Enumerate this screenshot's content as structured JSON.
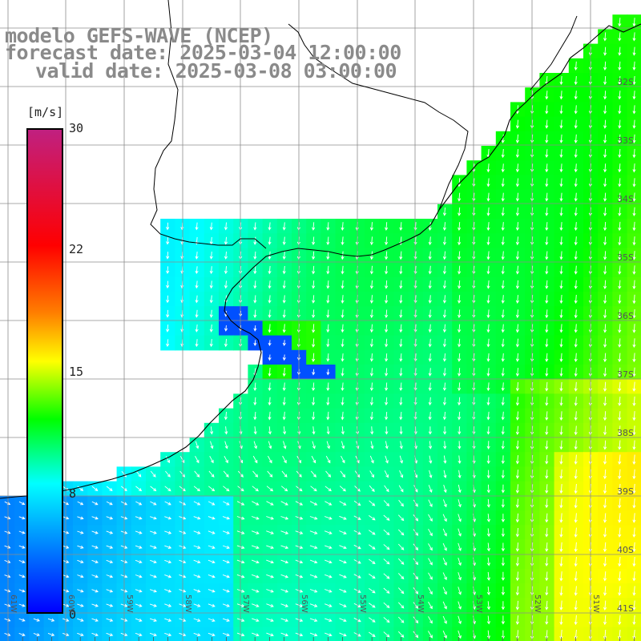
{
  "title": {
    "line1": "modelo GEFS-WAVE (NCEP)",
    "line2": "forecast date: 2025-03-04 12:00:00",
    "line3": "valid date: 2025-03-08 03:00:00"
  },
  "colorbar": {
    "units": "[m/s]",
    "ticks": [
      "30",
      "22",
      "15",
      "8",
      "0"
    ],
    "tick_values": [
      30,
      22,
      15,
      8,
      0
    ],
    "min": 0,
    "max": 30,
    "colors": [
      "#0000ff",
      "#00ffff",
      "#00ff00",
      "#ffff00",
      "#ff7f00",
      "#ff0000",
      "#c02080"
    ]
  },
  "map": {
    "lat_labels": [
      "32S",
      "33S",
      "34S",
      "35S",
      "36S",
      "37S",
      "38S",
      "39S",
      "40S",
      "41S"
    ],
    "lon_labels": [
      "61W",
      "60W",
      "59W",
      "58W",
      "57W",
      "56W",
      "55W",
      "54W",
      "53W",
      "52W",
      "51W"
    ],
    "wind_direction": "from north-northeast over ocean, westerly over southwest sector",
    "land_color": "#ffffff",
    "grid_color": "#8c8c8c",
    "arrow_color": "#ffffff"
  }
}
